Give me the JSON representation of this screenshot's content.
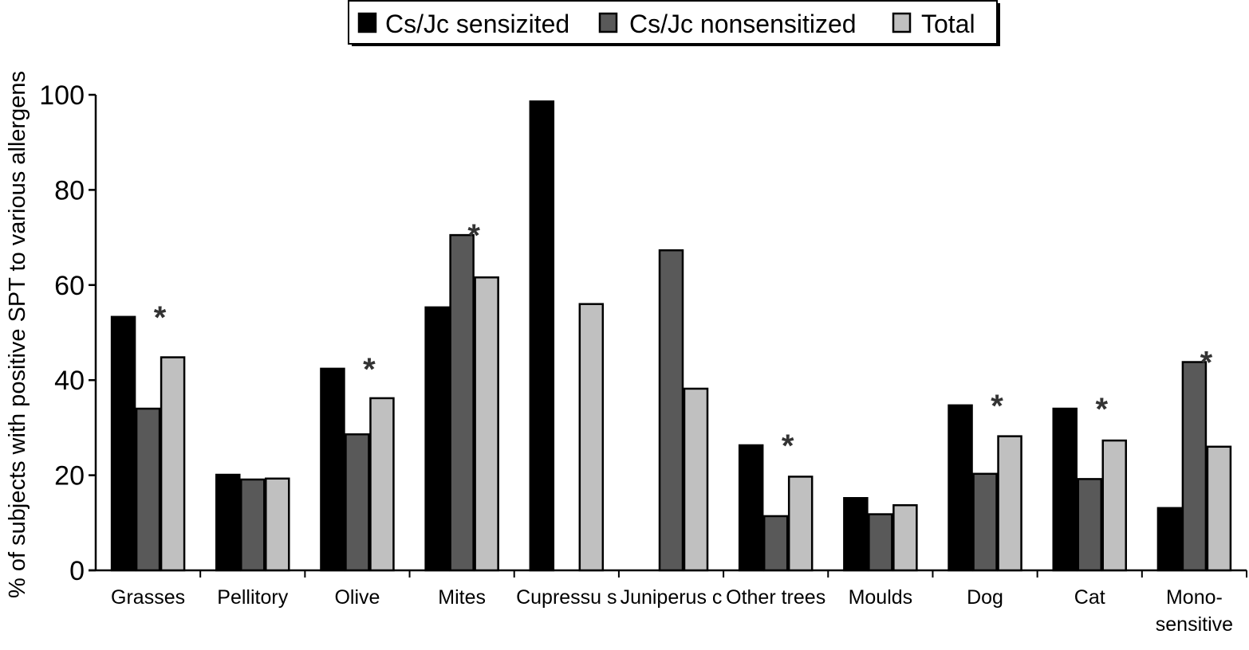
{
  "chart_data": {
    "type": "bar",
    "title": "",
    "xlabel": "",
    "ylabel": "% of subjects with positive SPT to various allergens",
    "ylim": [
      0,
      100
    ],
    "yticks": [
      "0",
      "20",
      "40",
      "60",
      "80",
      "100"
    ],
    "legend_position": "top-center",
    "grid": false,
    "categories": [
      [
        "Grasses"
      ],
      [
        "Pellitory"
      ],
      [
        "Olive"
      ],
      [
        "Mites"
      ],
      [
        "Cupressu s"
      ],
      [
        "Juniperus c"
      ],
      [
        "Other trees"
      ],
      [
        "Moulds"
      ],
      [
        "Dog"
      ],
      [
        "Cat"
      ],
      [
        "Mono-",
        "sensitive"
      ]
    ],
    "series": [
      {
        "name": "Cs/Jc sensizited",
        "color": "#000000",
        "values": [
          53.3,
          20.1,
          42.4,
          55.3,
          98.6,
          null,
          26.3,
          15.2,
          34.7,
          34.0,
          13.1
        ]
      },
      {
        "name": "Cs/Jc nonsensitized",
        "color": "#595959",
        "values": [
          34.0,
          19.1,
          28.6,
          70.5,
          null,
          67.3,
          11.4,
          11.8,
          20.3,
          19.2,
          43.8
        ]
      },
      {
        "name": "Total",
        "color": "#c0c0c0",
        "values": [
          44.8,
          19.3,
          36.2,
          61.6,
          56.0,
          38.2,
          19.7,
          13.7,
          28.2,
          27.3,
          26.0
        ]
      }
    ],
    "annotations": [
      {
        "text": "*",
        "category": 0
      },
      {
        "text": "*",
        "category": 2
      },
      {
        "text": "*",
        "category": 3
      },
      {
        "text": "*",
        "category": 6
      },
      {
        "text": "*",
        "category": 8
      },
      {
        "text": "*",
        "category": 9
      },
      {
        "text": "*",
        "category": 10
      }
    ]
  }
}
